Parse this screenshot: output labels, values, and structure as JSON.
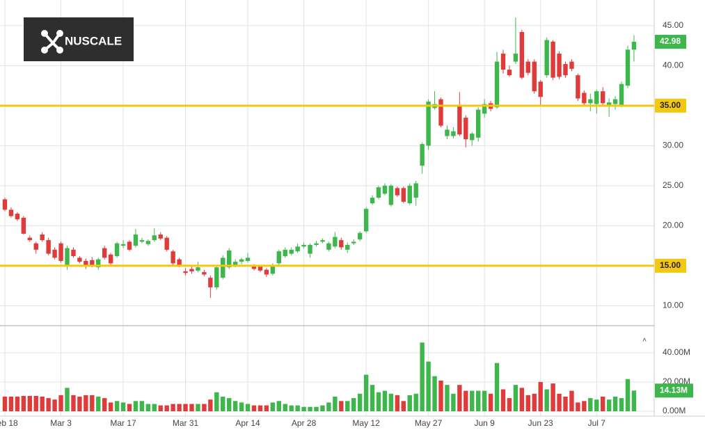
{
  "logo": "NUSCALE",
  "chart_data": {
    "type": "candlestick",
    "categories": [
      "Feb 18",
      null,
      null,
      null,
      null,
      null,
      null,
      null,
      null,
      "Mar 3",
      null,
      null,
      null,
      null,
      null,
      null,
      null,
      null,
      null,
      "Mar 17",
      null,
      null,
      null,
      null,
      null,
      null,
      null,
      null,
      null,
      "Mar 31",
      null,
      null,
      null,
      null,
      null,
      null,
      null,
      null,
      null,
      "Apr 14",
      null,
      null,
      null,
      null,
      null,
      null,
      null,
      null,
      "Apr 28",
      null,
      null,
      null,
      null,
      null,
      null,
      null,
      null,
      null,
      "May 12",
      null,
      null,
      null,
      null,
      null,
      null,
      null,
      null,
      null,
      "May 27",
      null,
      null,
      null,
      null,
      null,
      null,
      null,
      null,
      "Jun 9",
      null,
      null,
      null,
      null,
      null,
      null,
      null,
      null,
      "Jun 23",
      null,
      null,
      null,
      null,
      null,
      null,
      null,
      null,
      "Jul 7",
      null,
      null,
      null,
      null,
      null,
      null
    ],
    "ohlc": [
      [
        23.3,
        23.5,
        21.8,
        22.0
      ],
      [
        22.0,
        22.3,
        21.0,
        21.2
      ],
      [
        21.5,
        21.7,
        20.6,
        20.8
      ],
      [
        21.0,
        21.2,
        18.9,
        19.0
      ],
      [
        18.5,
        18.8,
        18.0,
        18.2
      ],
      [
        17.8,
        18.0,
        16.5,
        17.0
      ],
      [
        18.9,
        19.2,
        18.0,
        18.2
      ],
      [
        18.2,
        18.5,
        16.3,
        16.5
      ],
      [
        17.0,
        17.3,
        15.8,
        16.0
      ],
      [
        17.8,
        18.0,
        15.4,
        15.6
      ],
      [
        15.0,
        17.5,
        14.5,
        17.2
      ],
      [
        17.0,
        17.3,
        16.0,
        16.2
      ],
      [
        16.0,
        16.2,
        15.3,
        15.5
      ],
      [
        15.6,
        15.9,
        14.6,
        14.9
      ],
      [
        15.7,
        16.1,
        14.8,
        15.0
      ],
      [
        14.8,
        16.0,
        14.5,
        15.8
      ],
      [
        17.2,
        17.5,
        15.8,
        16.0
      ],
      [
        16.4,
        16.6,
        15.1,
        15.3
      ],
      [
        16.2,
        18.0,
        16.0,
        17.8
      ],
      [
        17.5,
        18.2,
        17.2,
        17.7
      ],
      [
        18.0,
        18.2,
        16.8,
        17.0
      ],
      [
        17.5,
        19.6,
        17.3,
        18.9
      ],
      [
        18.0,
        18.5,
        17.8,
        18.2
      ],
      [
        17.7,
        18.3,
        17.5,
        18.1
      ],
      [
        18.2,
        19.7,
        18.0,
        18.8
      ],
      [
        18.9,
        19.2,
        18.2,
        18.4
      ],
      [
        18.5,
        18.7,
        16.8,
        17.0
      ],
      [
        16.8,
        17.0,
        15.1,
        15.3
      ],
      [
        15.8,
        16.0,
        14.8,
        15.0
      ],
      [
        14.3,
        14.7,
        13.8,
        14.1
      ],
      [
        14.6,
        14.9,
        14.0,
        14.3
      ],
      [
        14.4,
        15.5,
        14.2,
        14.8
      ],
      [
        14.2,
        14.5,
        13.7,
        13.9
      ],
      [
        13.5,
        13.8,
        11.0,
        12.3
      ],
      [
        12.3,
        15.0,
        12.0,
        14.8
      ],
      [
        13.5,
        16.3,
        13.3,
        16.0
      ],
      [
        14.8,
        17.2,
        14.6,
        16.9
      ],
      [
        15.0,
        15.8,
        14.8,
        15.5
      ],
      [
        15.5,
        16.0,
        15.2,
        15.8
      ],
      [
        15.6,
        16.6,
        15.4,
        16.0
      ],
      [
        15.0,
        15.2,
        14.4,
        14.6
      ],
      [
        14.9,
        15.1,
        14.2,
        14.4
      ],
      [
        14.5,
        14.7,
        13.6,
        13.9
      ],
      [
        14.0,
        15.3,
        13.8,
        15.0
      ],
      [
        15.3,
        17.0,
        15.1,
        16.8
      ],
      [
        16.2,
        17.3,
        16.0,
        17.0
      ],
      [
        16.5,
        17.3,
        16.3,
        17.0
      ],
      [
        16.8,
        17.8,
        16.6,
        17.4
      ],
      [
        17.4,
        17.9,
        17.2,
        17.6
      ],
      [
        16.5,
        17.8,
        16.0,
        17.6
      ],
      [
        17.6,
        18.1,
        17.4,
        17.8
      ],
      [
        18.0,
        18.4,
        17.8,
        18.2
      ],
      [
        17.0,
        18.0,
        16.8,
        17.8
      ],
      [
        17.4,
        19.2,
        17.2,
        18.6
      ],
      [
        18.2,
        18.5,
        17.0,
        17.3
      ],
      [
        17.0,
        17.9,
        16.6,
        17.6
      ],
      [
        17.8,
        18.3,
        17.6,
        18.0
      ],
      [
        18.3,
        19.3,
        18.1,
        19.1
      ],
      [
        19.3,
        22.3,
        19.1,
        22.1
      ],
      [
        22.8,
        23.8,
        22.6,
        23.5
      ],
      [
        23.5,
        25.0,
        23.3,
        24.8
      ],
      [
        24.0,
        25.3,
        23.8,
        25.0
      ],
      [
        22.6,
        25.2,
        22.4,
        25.0
      ],
      [
        24.7,
        24.9,
        23.6,
        23.8
      ],
      [
        24.7,
        24.9,
        22.8,
        23.0
      ],
      [
        22.8,
        25.3,
        22.6,
        25.0
      ],
      [
        23.5,
        25.6,
        22.5,
        25.3
      ],
      [
        27.5,
        30.4,
        26.5,
        30.2
      ],
      [
        30.0,
        35.8,
        29.5,
        35.5
      ],
      [
        34.7,
        36.8,
        34.5,
        35.2
      ],
      [
        35.8,
        36.0,
        32.3,
        32.5
      ],
      [
        31.2,
        32.5,
        30.8,
        32.0
      ],
      [
        31.2,
        32.3,
        30.9,
        31.8
      ],
      [
        35.0,
        36.7,
        31.2,
        31.4
      ],
      [
        33.5,
        33.8,
        29.8,
        30.8
      ],
      [
        30.7,
        31.7,
        30.0,
        31.5
      ],
      [
        31.0,
        34.8,
        30.5,
        34.5
      ],
      [
        34.0,
        35.8,
        33.5,
        35.2
      ],
      [
        35.3,
        35.6,
        34.3,
        34.6
      ],
      [
        34.8,
        41.7,
        34.6,
        40.5
      ],
      [
        41.5,
        42.0,
        39.0,
        39.5
      ],
      [
        39.5,
        40.0,
        38.6,
        38.8
      ],
      [
        40.5,
        46.0,
        40.2,
        41.5
      ],
      [
        44.2,
        44.5,
        38.3,
        38.5
      ],
      [
        40.5,
        40.8,
        38.8,
        39.1
      ],
      [
        40.5,
        40.8,
        36.5,
        36.8
      ],
      [
        38.0,
        38.2,
        35.0,
        36.1
      ],
      [
        38.8,
        43.5,
        38.5,
        43.2
      ],
      [
        43.0,
        43.2,
        38.2,
        38.5
      ],
      [
        41.5,
        41.8,
        38.3,
        38.6
      ],
      [
        40.2,
        40.5,
        38.5,
        38.8
      ],
      [
        40.5,
        40.8,
        39.3,
        39.6
      ],
      [
        38.8,
        39.0,
        35.6,
        35.9
      ],
      [
        36.6,
        36.9,
        35.0,
        35.3
      ],
      [
        35.3,
        36.5,
        34.3,
        35.8
      ],
      [
        35.2,
        37.0,
        34.0,
        36.8
      ],
      [
        36.8,
        37.3,
        35.0,
        35.3
      ],
      [
        35.1,
        35.9,
        33.6,
        35.4
      ],
      [
        35.2,
        36.2,
        34.5,
        35.8
      ],
      [
        35.0,
        38.0,
        34.8,
        37.7
      ],
      [
        37.5,
        42.5,
        37.2,
        42.0
      ],
      [
        42.0,
        43.8,
        40.5,
        42.98
      ]
    ],
    "volumes": [
      10,
      10,
      10,
      10.5,
      10.5,
      10.5,
      10,
      9,
      8,
      11,
      16,
      11,
      10,
      11,
      11,
      10,
      9,
      6,
      7,
      6,
      5,
      7,
      7,
      5,
      5,
      4,
      4,
      5,
      5,
      5,
      5,
      5,
      5,
      8,
      13,
      10,
      9,
      7,
      6,
      5,
      4,
      4,
      4,
      6,
      7,
      5,
      4,
      4,
      3,
      3,
      3,
      4,
      6,
      10,
      7,
      7,
      9,
      12,
      25,
      18,
      13,
      14,
      12,
      11,
      7,
      11,
      12,
      47,
      34,
      24,
      21,
      18,
      12,
      18,
      14,
      14,
      14,
      14,
      12,
      33,
      15,
      9,
      18,
      16,
      11,
      12,
      20,
      15,
      19,
      12,
      10,
      14,
      6,
      7,
      9,
      8,
      10,
      8,
      10,
      9,
      22,
      14.13
    ],
    "up_color": "#3db74b",
    "down_color": "#e03b3b",
    "ylim": [
      7.6,
      48.2
    ],
    "yticks": [
      {
        "value": 10,
        "label": "10.00"
      },
      {
        "value": 15,
        "label": "15.00"
      },
      {
        "value": 20,
        "label": "20.00"
      },
      {
        "value": 25,
        "label": "25.00"
      },
      {
        "value": 30,
        "label": "30.00"
      },
      {
        "value": 35,
        "label": "35.00"
      },
      {
        "value": 40,
        "label": "40.00"
      },
      {
        "value": 45,
        "label": "45.00"
      }
    ],
    "y2lim": [
      0,
      57.6
    ],
    "y2ticks": [
      {
        "value": 0,
        "label": "0.00M"
      },
      {
        "value": 20,
        "label": "20.00M"
      },
      {
        "value": 40,
        "label": "40.00M"
      }
    ],
    "hlines": [
      {
        "value": 35,
        "label": "35.00"
      },
      {
        "value": 15,
        "label": "15.00"
      }
    ],
    "hline_color": "#f2c811",
    "price_marker": {
      "value": 42.98,
      "label": "42.98"
    },
    "volume_marker": {
      "value": 14.13,
      "label": "14.13M"
    },
    "grid": true
  }
}
